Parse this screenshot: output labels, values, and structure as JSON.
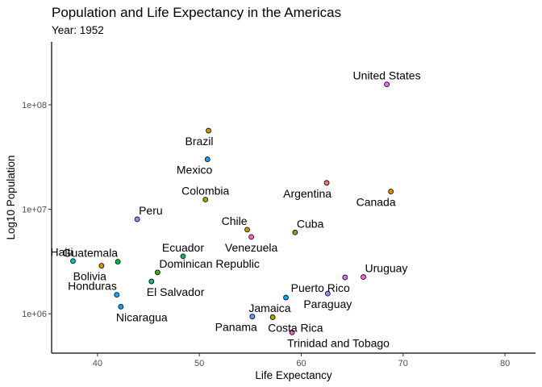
{
  "chart_data": {
    "type": "scatter",
    "title": "Population and Life Expectancy in the Americas",
    "subtitle": "Year: 1952",
    "xlabel": "Life Expectancy",
    "ylabel": "Log10 Population",
    "y_scale": "log10",
    "xlim": [
      35.5,
      83
    ],
    "ylim": [
      420000,
      400000000
    ],
    "x_ticks": [
      {
        "value": 40,
        "label": "40"
      },
      {
        "value": 50,
        "label": "50"
      },
      {
        "value": 60,
        "label": "60"
      },
      {
        "value": 70,
        "label": "70"
      },
      {
        "value": 80,
        "label": "80"
      }
    ],
    "y_ticks": [
      {
        "value": 1000000,
        "label": "1e+06"
      },
      {
        "value": 10000000,
        "label": "1e+07"
      },
      {
        "value": 100000000,
        "label": "1e+08"
      }
    ],
    "grid": false,
    "legend": "none",
    "points": [
      {
        "country": "United States",
        "x": 68.4,
        "y": 157000000,
        "color": "#E76BF3",
        "label_pos": "above"
      },
      {
        "country": "Brazil",
        "x": 50.9,
        "y": 56600000,
        "color": "#C99800",
        "label_pos": "below-left"
      },
      {
        "country": "Mexico",
        "x": 50.8,
        "y": 30100000,
        "color": "#00A9FF",
        "label_pos": "below-left"
      },
      {
        "country": "Argentina",
        "x": 62.5,
        "y": 17900000,
        "color": "#F8766D",
        "label_pos": "below-left"
      },
      {
        "country": "Canada",
        "x": 68.8,
        "y": 14800000,
        "color": "#E58700",
        "label_pos": "below-left"
      },
      {
        "country": "Colombia",
        "x": 50.6,
        "y": 12400000,
        "color": "#A3A500",
        "label_pos": "above"
      },
      {
        "country": "Peru",
        "x": 43.9,
        "y": 8030000,
        "color": "#9590FF",
        "label_pos": "above-right"
      },
      {
        "country": "Chile",
        "x": 54.7,
        "y": 6380000,
        "color": "#B79F00",
        "label_pos": "above-left"
      },
      {
        "country": "Cuba",
        "x": 59.4,
        "y": 6010000,
        "color": "#6BB100",
        "label_pos": "above-right"
      },
      {
        "country": "Venezuela",
        "x": 55.1,
        "y": 5440000,
        "color": "#FF62BC",
        "label_pos": "below"
      },
      {
        "country": "Ecuador",
        "x": 48.4,
        "y": 3550000,
        "color": "#00BD5C",
        "label_pos": "above"
      },
      {
        "country": "Haiti",
        "x": 37.6,
        "y": 3200000,
        "color": "#00BFC4",
        "label_pos": "above-left"
      },
      {
        "country": "Guatemala",
        "x": 42.0,
        "y": 3150000,
        "color": "#00BA38",
        "label_pos": "above-left"
      },
      {
        "country": "Bolivia",
        "x": 40.4,
        "y": 2880000,
        "color": "#E38900",
        "label_pos": "below-left"
      },
      {
        "country": "Dominican Republic",
        "x": 45.9,
        "y": 2490000,
        "color": "#39B600",
        "label_pos": "above-right"
      },
      {
        "country": "Uruguay",
        "x": 66.1,
        "y": 2250000,
        "color": "#FD61D1",
        "label_pos": "above-right"
      },
      {
        "country": "Puerto Rico",
        "x": 64.3,
        "y": 2230000,
        "color": "#DB72FB",
        "label_pos": "below-left"
      },
      {
        "country": "El Salvador",
        "x": 45.3,
        "y": 2040000,
        "color": "#00C08B",
        "label_pos": "below-right"
      },
      {
        "country": "Paraguay",
        "x": 62.6,
        "y": 1560000,
        "color": "#8B93FF",
        "label_pos": "below"
      },
      {
        "country": "Honduras",
        "x": 41.9,
        "y": 1520000,
        "color": "#00B0F6",
        "label_pos": "above-left"
      },
      {
        "country": "Nicaragua",
        "x": 42.3,
        "y": 1170000,
        "color": "#00A5FF",
        "label_pos": "below-right"
      },
      {
        "country": "Jamaica",
        "x": 58.5,
        "y": 1430000,
        "color": "#00A9FF",
        "label_pos": "below-left"
      },
      {
        "country": "Panama",
        "x": 55.2,
        "y": 940000,
        "color": "#619CFF",
        "label_pos": "below-left"
      },
      {
        "country": "Costa Rica",
        "x": 57.2,
        "y": 927000,
        "color": "#ABA300",
        "label_pos": "below-right"
      },
      {
        "country": "Trinidad and Tobago",
        "x": 59.1,
        "y": 663000,
        "color": "#FF61C3",
        "label_pos": "below-right"
      }
    ]
  }
}
